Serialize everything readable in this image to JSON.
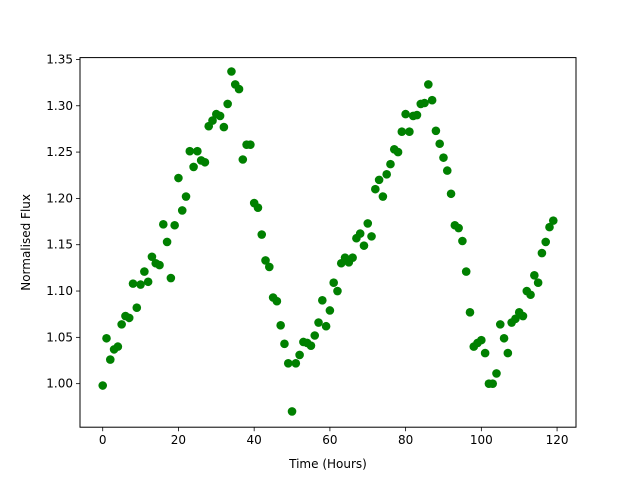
{
  "chart_data": {
    "type": "scatter",
    "title": "",
    "xlabel": "Time (Hours)",
    "ylabel": "Normalised Flux",
    "xlim": [
      -6,
      125
    ],
    "ylim": [
      0.953,
      1.352
    ],
    "xticks": [
      0,
      20,
      40,
      60,
      80,
      100,
      120
    ],
    "xtick_labels": [
      "0",
      "20",
      "40",
      "60",
      "80",
      "100",
      "120"
    ],
    "yticks": [
      1.0,
      1.05,
      1.1,
      1.15,
      1.2,
      1.25,
      1.3,
      1.35
    ],
    "ytick_labels": [
      "1.00",
      "1.05",
      "1.10",
      "1.15",
      "1.20",
      "1.25",
      "1.30",
      "1.35"
    ],
    "grid": false,
    "marker_color": "#008000",
    "series": [
      {
        "x": [
          0,
          1,
          2,
          3,
          4,
          5,
          6,
          7,
          8,
          9,
          10,
          11,
          12,
          13,
          14,
          15,
          16,
          17,
          18,
          19,
          20,
          21,
          22,
          23,
          24,
          25,
          26,
          27,
          28,
          29,
          30,
          31,
          32,
          33,
          34,
          35,
          36,
          37,
          38,
          39,
          40,
          41,
          42,
          43,
          44,
          45,
          46,
          47,
          48,
          49,
          50,
          51,
          52,
          53,
          54,
          55,
          56,
          57,
          58,
          59,
          60,
          61,
          62,
          63,
          64,
          65,
          66,
          67,
          68,
          69,
          70,
          71,
          72,
          73,
          74,
          75,
          76,
          77,
          78,
          79,
          80,
          81,
          82,
          83,
          84,
          85,
          86,
          87,
          88,
          89,
          90,
          91,
          92,
          93,
          94,
          95,
          96,
          97,
          98,
          99,
          100,
          101,
          102,
          103,
          104,
          105,
          106,
          107,
          108,
          109,
          110,
          111,
          112,
          113,
          114,
          115,
          116,
          117,
          118,
          119
        ],
        "y": [
          0.998,
          1.049,
          1.026,
          1.037,
          1.04,
          1.064,
          1.073,
          1.071,
          1.108,
          1.082,
          1.107,
          1.121,
          1.11,
          1.137,
          1.13,
          1.128,
          1.172,
          1.153,
          1.114,
          1.171,
          1.222,
          1.187,
          1.202,
          1.251,
          1.234,
          1.251,
          1.241,
          1.239,
          1.278,
          1.284,
          1.291,
          1.289,
          1.277,
          1.302,
          1.337,
          1.323,
          1.318,
          1.242,
          1.258,
          1.258,
          1.195,
          1.19,
          1.161,
          1.133,
          1.126,
          1.093,
          1.089,
          1.063,
          1.043,
          1.022,
          0.97,
          1.022,
          1.031,
          1.045,
          1.044,
          1.041,
          1.052,
          1.066,
          1.09,
          1.062,
          1.079,
          1.109,
          1.1,
          1.13,
          1.136,
          1.131,
          1.136,
          1.157,
          1.162,
          1.149,
          1.173,
          1.159,
          1.21,
          1.22,
          1.202,
          1.226,
          1.237,
          1.253,
          1.25,
          1.272,
          1.291,
          1.272,
          1.289,
          1.29,
          1.302,
          1.303,
          1.323,
          1.306,
          1.273,
          1.259,
          1.244,
          1.23,
          1.205,
          1.171,
          1.168,
          1.154,
          1.121,
          1.077,
          1.04,
          1.044,
          1.047,
          1.033,
          1.0,
          1.0,
          1.011,
          1.064,
          1.049,
          1.033,
          1.066,
          1.07,
          1.077,
          1.073,
          1.1,
          1.096,
          1.117,
          1.109,
          1.141,
          1.153,
          1.169,
          1.176
        ]
      }
    ]
  }
}
